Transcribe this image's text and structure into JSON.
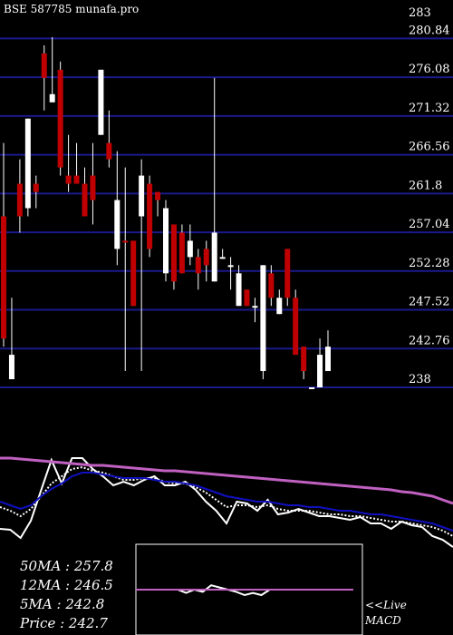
{
  "chart_data": [
    {
      "type": "candlestick",
      "title": "BSE 587785 munafa.pro",
      "y_ticks": [
        "283",
        "280.84",
        "276.08",
        "271.32",
        "266.56",
        "261.8",
        "257.04",
        "252.28",
        "247.52",
        "242.76",
        "238"
      ],
      "ylim": [
        238,
        283
      ],
      "grid": true,
      "candles": [
        {
          "o": 244,
          "h": 268,
          "l": 243,
          "c": 259,
          "up": false
        },
        {
          "o": 242,
          "h": 249,
          "l": 239,
          "c": 239,
          "up": true
        },
        {
          "o": 259,
          "h": 266,
          "l": 257,
          "c": 263,
          "up": false
        },
        {
          "o": 260,
          "h": 271,
          "l": 259,
          "c": 271,
          "up": true
        },
        {
          "o": 262,
          "h": 264,
          "l": 260,
          "c": 263,
          "up": false
        },
        {
          "o": 276,
          "h": 280,
          "l": 272,
          "c": 279,
          "up": false
        },
        {
          "o": 273,
          "h": 281,
          "l": 273,
          "c": 274,
          "up": true
        },
        {
          "o": 277,
          "h": 278,
          "l": 264,
          "c": 265,
          "up": false
        },
        {
          "o": 264,
          "h": 269,
          "l": 262,
          "c": 263,
          "up": false
        },
        {
          "o": 264,
          "h": 268,
          "l": 263,
          "c": 263,
          "up": false
        },
        {
          "o": 263,
          "h": 265,
          "l": 259,
          "c": 259,
          "up": false
        },
        {
          "o": 264,
          "h": 268,
          "l": 258,
          "c": 261,
          "up": false
        },
        {
          "o": 269,
          "h": 277,
          "l": 269,
          "c": 277,
          "up": true
        },
        {
          "o": 268,
          "h": 272,
          "l": 265,
          "c": 266,
          "up": false
        },
        {
          "o": 261,
          "h": 267,
          "l": 253,
          "c": 255,
          "up": true
        },
        {
          "o": 256,
          "h": 265,
          "l": 240,
          "c": 256,
          "up": false
        },
        {
          "o": 256,
          "h": 256,
          "l": 248,
          "c": 248,
          "up": false
        },
        {
          "o": 264,
          "h": 266,
          "l": 240,
          "c": 259,
          "up": true
        },
        {
          "o": 263,
          "h": 264,
          "l": 254,
          "c": 255,
          "up": false
        },
        {
          "o": 261,
          "h": 262,
          "l": 259,
          "c": 262,
          "up": false
        },
        {
          "o": 260,
          "h": 261,
          "l": 251,
          "c": 252,
          "up": true
        },
        {
          "o": 258,
          "h": 258,
          "l": 250,
          "c": 251,
          "up": false
        },
        {
          "o": 252,
          "h": 258,
          "l": 252,
          "c": 257,
          "up": false
        },
        {
          "o": 256,
          "h": 258,
          "l": 253,
          "c": 254,
          "up": true
        },
        {
          "o": 252,
          "h": 255,
          "l": 250,
          "c": 254,
          "up": false
        },
        {
          "o": 253,
          "h": 256,
          "l": 251,
          "c": 255,
          "up": false
        },
        {
          "o": 257,
          "h": 276,
          "l": 251,
          "c": 251,
          "up": true
        },
        {
          "o": 254,
          "h": 255,
          "l": 254,
          "c": 254,
          "up": true
        },
        {
          "o": 253,
          "h": 254,
          "l": 250,
          "c": 253,
          "up": true
        },
        {
          "o": 252,
          "h": 253,
          "l": 248,
          "c": 248,
          "up": true
        },
        {
          "o": 250,
          "h": 250,
          "l": 248,
          "c": 248,
          "up": false
        },
        {
          "o": 248,
          "h": 249,
          "l": 246,
          "c": 248,
          "up": true
        },
        {
          "o": 253,
          "h": 253,
          "l": 239,
          "c": 240,
          "up": true
        },
        {
          "o": 252,
          "h": 253,
          "l": 248,
          "c": 249,
          "up": false
        },
        {
          "o": 249,
          "h": 250,
          "l": 247,
          "c": 247,
          "up": true
        },
        {
          "o": 255,
          "h": 255,
          "l": 248,
          "c": 249,
          "up": false
        },
        {
          "o": 249,
          "h": 250,
          "l": 242,
          "c": 242,
          "up": false
        },
        {
          "o": 243,
          "h": 243,
          "l": 239,
          "c": 240,
          "up": false
        },
        {
          "o": 238,
          "h": 238,
          "l": 238,
          "c": 238,
          "up": true
        },
        {
          "o": 242,
          "h": 244,
          "l": 238,
          "c": 238,
          "up": true
        },
        {
          "o": 243,
          "h": 245,
          "l": 240,
          "c": 240,
          "up": true
        }
      ],
      "grid_color": "#1a1a8c",
      "up_color": "#ffffff",
      "down_color": "#c00000"
    },
    {
      "type": "line",
      "series": [
        {
          "color": "#ffffff",
          "dash": false,
          "values": [
            88,
            89,
            98,
            79,
            45,
            12,
            38,
            10,
            10,
            22,
            30,
            40,
            36,
            40,
            34,
            30,
            40,
            40,
            36,
            45,
            58,
            68,
            82,
            58,
            60,
            68,
            56,
            72,
            70,
            66,
            70,
            74,
            74,
            76,
            78,
            75,
            82,
            82,
            88,
            80,
            84,
            86,
            96,
            100,
            108
          ]
        },
        {
          "color": "#ffffff",
          "dash": true,
          "values": [
            64,
            68,
            74,
            66,
            52,
            38,
            30,
            22,
            20,
            24,
            26,
            30,
            34,
            34,
            32,
            32,
            36,
            38,
            38,
            42,
            48,
            56,
            64,
            62,
            62,
            64,
            62,
            66,
            68,
            68,
            68,
            70,
            72,
            72,
            74,
            74,
            76,
            78,
            80,
            80,
            82,
            84,
            86,
            90,
            96
          ]
        },
        {
          "color": "#1010c0",
          "dash": false,
          "values": [
            58,
            62,
            66,
            62,
            52,
            44,
            38,
            30,
            26,
            26,
            28,
            30,
            32,
            32,
            32,
            34,
            36,
            36,
            38,
            40,
            44,
            48,
            52,
            54,
            56,
            58,
            58,
            60,
            62,
            62,
            64,
            64,
            66,
            68,
            68,
            70,
            72,
            72,
            74,
            76,
            78,
            80,
            82,
            86,
            90
          ]
        },
        {
          "color": "#c060c0",
          "dash": false,
          "values": [
            10,
            10,
            11,
            12,
            13,
            14,
            15,
            16,
            17,
            18,
            18,
            19,
            20,
            21,
            22,
            23,
            24,
            24,
            25,
            26,
            27,
            28,
            29,
            30,
            31,
            32,
            33,
            34,
            35,
            36,
            37,
            38,
            39,
            40,
            41,
            42,
            43,
            44,
            45,
            47,
            48,
            50,
            52,
            56,
            60
          ]
        }
      ]
    },
    {
      "type": "line",
      "title": "MACD",
      "series": [
        {
          "color": "#ffffff",
          "values": [
            0,
            0,
            0,
            0,
            0,
            0,
            -3,
            0,
            -2,
            4,
            2,
            0,
            -2,
            -5,
            -3,
            -5,
            0,
            null,
            null,
            null,
            null,
            null,
            null,
            null,
            null,
            null,
            null
          ]
        },
        {
          "color": "#c060c0",
          "values": [
            0,
            0,
            0,
            0,
            0,
            0,
            0,
            0,
            0,
            0,
            0,
            0,
            0,
            0,
            0,
            0,
            0,
            0,
            0,
            0,
            0,
            0,
            0,
            0,
            0,
            0,
            0
          ]
        }
      ]
    }
  ],
  "stats": {
    "ma50": "50MA : 257.8",
    "ma12": "12MA : 246.5",
    "ma5": "5MA : 242.8",
    "price": "Price   : 242.7"
  },
  "live_label": "<<Live",
  "macd_label": "MACD"
}
